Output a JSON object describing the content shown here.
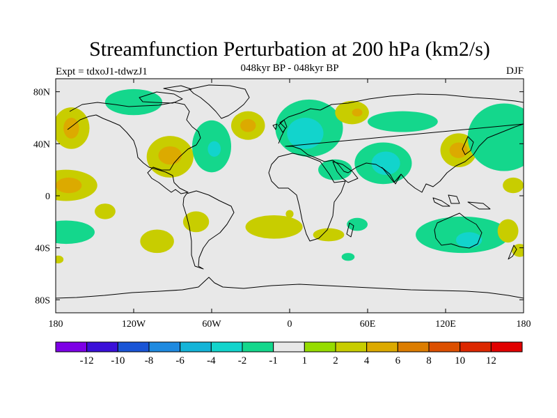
{
  "chart_data": {
    "type": "heatmap",
    "title": "Streamfunction Perturbation at 200 hPa (km2/s)",
    "left_label": "Expt = tdxoJ1-tdwzJ1",
    "center_label": "048kyr BP - 048kyr BP",
    "right_label": "DJF",
    "xlim": [
      -180,
      180
    ],
    "ylim": [
      -90,
      90
    ],
    "x_ticks": [
      {
        "lon": -180,
        "label": "180"
      },
      {
        "lon": -120,
        "label": "120W"
      },
      {
        "lon": -60,
        "label": "60W"
      },
      {
        "lon": 0,
        "label": "0"
      },
      {
        "lon": 60,
        "label": "60E"
      },
      {
        "lon": 120,
        "label": "120E"
      },
      {
        "lon": 180,
        "label": "180"
      }
    ],
    "y_ticks": [
      {
        "lat": 80,
        "label": "80N"
      },
      {
        "lat": 40,
        "label": "40N"
      },
      {
        "lat": 0,
        "label": "0"
      },
      {
        "lat": -40,
        "label": "40S"
      },
      {
        "lat": -80,
        "label": "80S"
      }
    ],
    "colorbar": {
      "colors": [
        "#7d00e6",
        "#3a10d8",
        "#1a55d6",
        "#1f8ae0",
        "#14b4d8",
        "#12d4cc",
        "#14d78c",
        "#e8e8e8",
        "#96dc00",
        "#c8cd00",
        "#dcaa00",
        "#dc7d00",
        "#dc5000",
        "#dc2800",
        "#e10000"
      ],
      "labels": [
        "-12",
        "-10",
        "-8",
        "-6",
        "-4",
        "-2",
        "-1",
        "1",
        "2",
        "4",
        "6",
        "8",
        "10",
        "12"
      ]
    },
    "anomalies": [
      {
        "lon": -168,
        "lat": 52,
        "rlon": 14,
        "rlat": 16,
        "level": "2"
      },
      {
        "lon": -168,
        "lat": 52,
        "rlon": 6,
        "rlat": 8,
        "level": "4"
      },
      {
        "lon": -120,
        "lat": 72,
        "rlon": 22,
        "rlat": 10,
        "level": "-1"
      },
      {
        "lon": -92,
        "lat": 30,
        "rlon": 18,
        "rlat": 16,
        "level": "2"
      },
      {
        "lon": -92,
        "lat": 31,
        "rlon": 9,
        "rlat": 7,
        "level": "4"
      },
      {
        "lon": -60,
        "lat": 38,
        "rlon": 15,
        "rlat": 20,
        "level": "-1"
      },
      {
        "lon": -58,
        "lat": 36,
        "rlon": 5,
        "rlat": 6,
        "level": "-2"
      },
      {
        "lon": -32,
        "lat": 54,
        "rlon": 13,
        "rlat": 11,
        "level": "2"
      },
      {
        "lon": -32,
        "lat": 54,
        "rlon": 6,
        "rlat": 5,
        "level": "4"
      },
      {
        "lon": 15,
        "lat": 52,
        "rlon": 26,
        "rlat": 22,
        "level": "-1"
      },
      {
        "lon": 12,
        "lat": 48,
        "rlon": 14,
        "rlat": 12,
        "level": "-2"
      },
      {
        "lon": 35,
        "lat": 20,
        "rlon": 13,
        "rlat": 8,
        "level": "-1"
      },
      {
        "lon": 48,
        "lat": 64,
        "rlon": 13,
        "rlat": 9,
        "level": "2"
      },
      {
        "lon": 52,
        "lat": 64,
        "rlon": 4,
        "rlat": 3,
        "level": "4"
      },
      {
        "lon": 87,
        "lat": 57,
        "rlon": 27,
        "rlat": 8,
        "level": "-1"
      },
      {
        "lon": 72,
        "lat": 25,
        "rlon": 22,
        "rlat": 16,
        "level": "-1"
      },
      {
        "lon": 74,
        "lat": 25,
        "rlon": 11,
        "rlat": 9,
        "level": "-2"
      },
      {
        "lon": 130,
        "lat": 35,
        "rlon": 14,
        "rlat": 13,
        "level": "2"
      },
      {
        "lon": 130,
        "lat": 35,
        "rlon": 7,
        "rlat": 6,
        "level": "4"
      },
      {
        "lon": 165,
        "lat": 45,
        "rlon": 28,
        "rlat": 26,
        "level": "-1"
      },
      {
        "lon": -172,
        "lat": 8,
        "rlon": 24,
        "rlat": 12,
        "level": "2"
      },
      {
        "lon": -170,
        "lat": 8,
        "rlon": 10,
        "rlat": 6,
        "level": "4"
      },
      {
        "lon": 172,
        "lat": 8,
        "rlon": 8,
        "rlat": 6,
        "level": "2"
      },
      {
        "lon": -142,
        "lat": -12,
        "rlon": 8,
        "rlat": 6,
        "level": "2"
      },
      {
        "lon": -172,
        "lat": -28,
        "rlon": 22,
        "rlat": 9,
        "level": "-1"
      },
      {
        "lon": -102,
        "lat": -35,
        "rlon": 13,
        "rlat": 9,
        "level": "2"
      },
      {
        "lon": -72,
        "lat": -20,
        "rlon": 10,
        "rlat": 8,
        "level": "2"
      },
      {
        "lon": -12,
        "lat": -24,
        "rlon": 22,
        "rlat": 9,
        "level": "2"
      },
      {
        "lon": 0,
        "lat": -14,
        "rlon": 3,
        "rlat": 3,
        "level": "2"
      },
      {
        "lon": 30,
        "lat": -30,
        "rlon": 12,
        "rlat": 5,
        "level": "2"
      },
      {
        "lon": 52,
        "lat": -22,
        "rlon": 8,
        "rlat": 5,
        "level": "-1"
      },
      {
        "lon": 133,
        "lat": -30,
        "rlon": 36,
        "rlat": 14,
        "level": "-1"
      },
      {
        "lon": 138,
        "lat": -34,
        "rlon": 10,
        "rlat": 6,
        "level": "-2"
      },
      {
        "lon": 168,
        "lat": -27,
        "rlon": 8,
        "rlat": 9,
        "level": "2"
      },
      {
        "lon": 177,
        "lat": -42,
        "rlon": 6,
        "rlat": 5,
        "level": "2"
      },
      {
        "lon": 45,
        "lat": -47,
        "rlon": 5,
        "rlat": 3,
        "level": "-1"
      },
      {
        "lon": -178,
        "lat": -49,
        "rlon": 4,
        "rlat": 3,
        "level": "2"
      }
    ]
  }
}
